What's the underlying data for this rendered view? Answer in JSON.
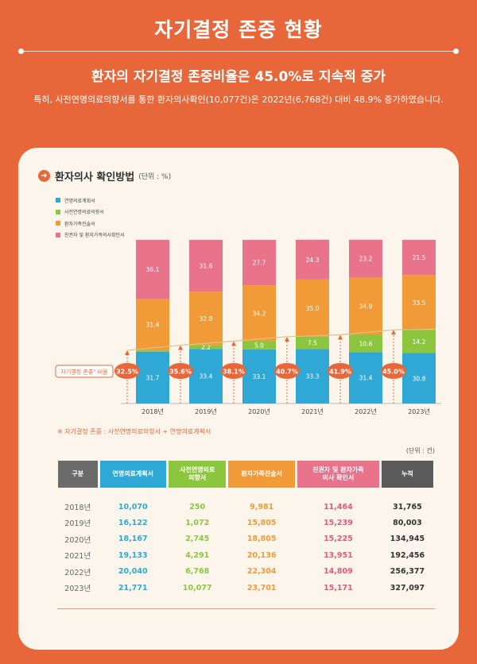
{
  "header": {
    "title": "자기결정 존중 현황",
    "headline": "환자의 자기결정 존중비율은 45.0%로 지속적 증가",
    "subline": "특히, 사전연명의료의향서를 통한 환자의사확인(10,077건)은 2022년(6,768건) 대비 48.9% 증가하였습니다."
  },
  "section": {
    "title": "환자의사 확인방법",
    "unit": "(단위 : %)"
  },
  "colors": {
    "plan": "#2fa8d6",
    "advance": "#8cc63e",
    "patient": "#f19a38",
    "family": "#e9738b",
    "accent": "#e8673a",
    "total": "#5a5a5a"
  },
  "chart_data": {
    "type": "bar",
    "stacked": true,
    "categories": [
      "2018년",
      "2019년",
      "2020년",
      "2021년",
      "2022년",
      "2023년"
    ],
    "series": [
      {
        "name": "연명의료계획서",
        "values": [
          31.7,
          33.4,
          33.1,
          33.3,
          31.4,
          30.8
        ]
      },
      {
        "name": "사전연명의료의향서",
        "values": [
          0.8,
          2.2,
          5.0,
          7.5,
          10.6,
          14.2
        ]
      },
      {
        "name": "환자가족진술서",
        "values": [
          31.4,
          32.8,
          34.2,
          35.0,
          34.9,
          33.5
        ]
      },
      {
        "name": "친권자 및 환자가족의사확인서",
        "values": [
          36.1,
          31.6,
          27.7,
          24.3,
          23.2,
          21.5
        ]
      }
    ],
    "ratio_label": "자기결정 존중\" 비율",
    "ratio_values": [
      "32.5%",
      "35.6%",
      "38.1%",
      "40.7%",
      "41.9%",
      "45.0%"
    ],
    "ylim": [
      0,
      100
    ]
  },
  "note": "※ 자기결정 존중 : 사전연명의료의향서 + 연명의료계획서",
  "table": {
    "unit": "(단위 : 건)",
    "headers": [
      "구분",
      "연명의료계획서",
      "사전연명의료\n의향서",
      "환자가족진술서",
      "친권자 및 환자가족\n의사 확인서",
      "누적"
    ],
    "rows": [
      [
        "2018년",
        "10,070",
        "250",
        "9,981",
        "11,464",
        "31,765"
      ],
      [
        "2019년",
        "16,122",
        "1,072",
        "15,805",
        "15,239",
        "80,003"
      ],
      [
        "2020년",
        "18,167",
        "2,745",
        "18,805",
        "15,225",
        "134,945"
      ],
      [
        "2021년",
        "19,133",
        "4,291",
        "20,136",
        "13,951",
        "192,456"
      ],
      [
        "2022년",
        "20,040",
        "6,768",
        "22,304",
        "14,809",
        "256,377"
      ],
      [
        "2023년",
        "21,771",
        "10,077",
        "23,701",
        "15,171",
        "327,097"
      ]
    ]
  }
}
